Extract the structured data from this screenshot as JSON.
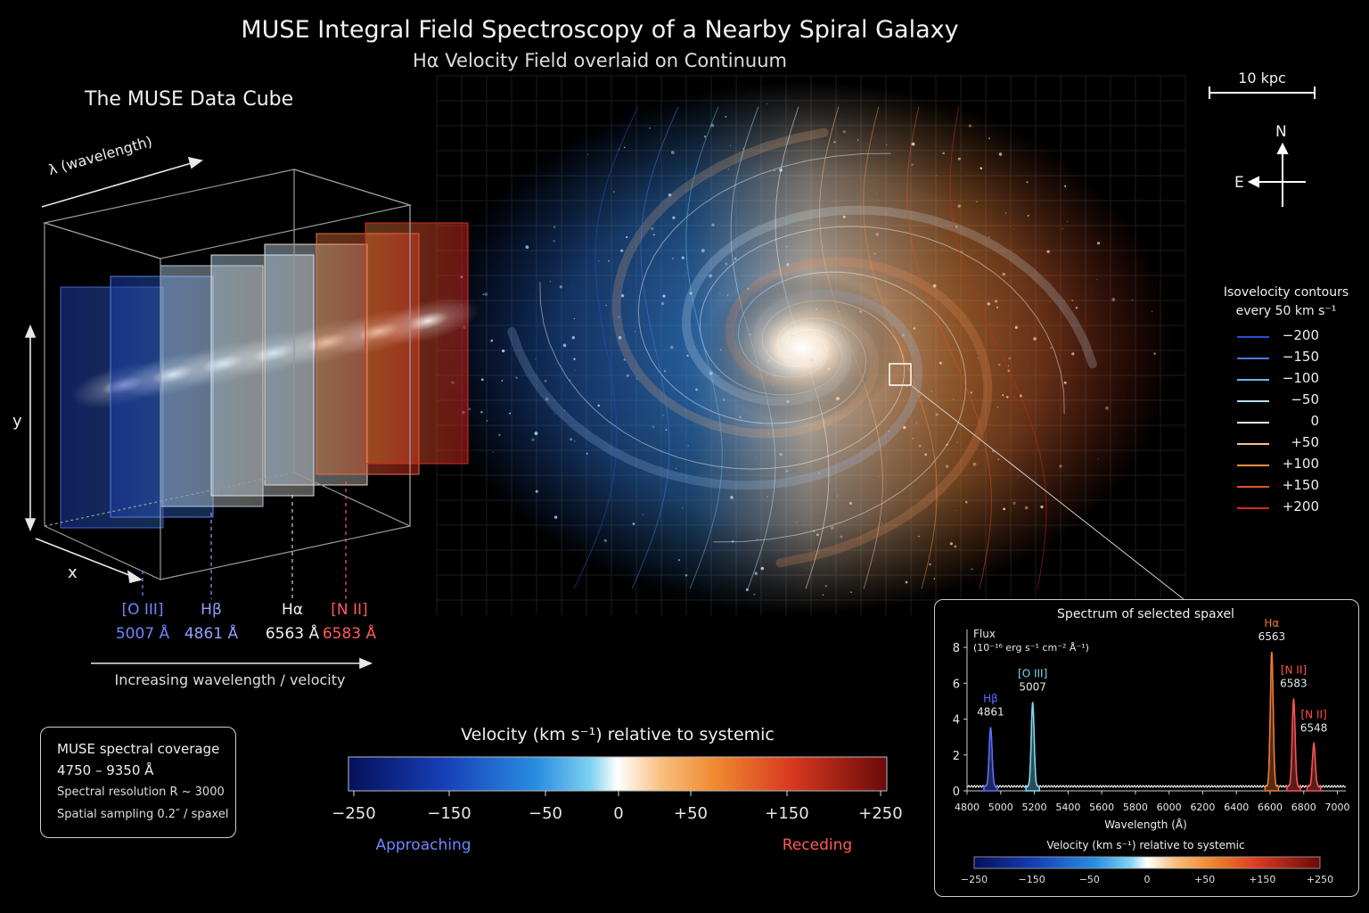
{
  "title": "MUSE Integral Field Spectroscopy of a Nearby Spiral Galaxy",
  "subtitle": "Hα Velocity Field overlaid on Continuum",
  "cube": {
    "title": "The MUSE Data Cube",
    "axis_lambda": "λ (wavelength)",
    "axis_y": "y",
    "axis_x": "x",
    "lines": [
      {
        "name": "[O III]",
        "wavelength": "5007 Å",
        "color": "#6f86ff"
      },
      {
        "name": "Hβ",
        "wavelength": "4861 Å",
        "color": "#8fa2ff"
      },
      {
        "name": "Hα",
        "wavelength": "6563 Å",
        "color": "#f2f2f2"
      },
      {
        "name": "[N II]",
        "wavelength": "6583 Å",
        "color": "#ff5a5a"
      }
    ],
    "increasing_label": "Increasing wavelength / velocity"
  },
  "coverage": {
    "line1": "MUSE spectral coverage",
    "line2": "4750 – 9350 Å",
    "line3": "Spectral resolution R ~ 3000",
    "line4": "Spatial sampling 0.2″ / spaxel"
  },
  "scale_bar": {
    "label": "10 kpc"
  },
  "compass": {
    "north": "N",
    "east": "E"
  },
  "contour_legend": {
    "title_line1": "Isovelocity contours",
    "title_line2": "every 50 km s⁻¹",
    "items": [
      {
        "label": "−200",
        "color": "#2a4fd6"
      },
      {
        "label": "−150",
        "color": "#4a78e8"
      },
      {
        "label": "−100",
        "color": "#6ab8e8"
      },
      {
        "label": "−50",
        "color": "#b8dcf0"
      },
      {
        "label": "0",
        "color": "#f4f4f4"
      },
      {
        "label": "+50",
        "color": "#f2c08a"
      },
      {
        "label": "+100",
        "color": "#f09040"
      },
      {
        "label": "+150",
        "color": "#e8502a"
      },
      {
        "label": "+200",
        "color": "#d42a20"
      }
    ]
  },
  "colorbar": {
    "title": "Velocity (km s⁻¹) relative to systemic",
    "ticks": [
      "−250",
      "−150",
      "−50",
      "0",
      "+50",
      "+150",
      "+250"
    ],
    "approaching": "Approaching",
    "receding": "Receding",
    "approaching_color": "#6f86ff",
    "receding_color": "#ff5a5a"
  },
  "spectrum_panel": {
    "title": "Spectrum of selected spaxel",
    "flux_label": "Flux",
    "flux_units": "(10⁻¹⁶ erg s⁻¹ cm⁻² Å⁻¹)",
    "xlabel": "Wavelength (Å)",
    "colorbar_title": "Velocity (km s⁻¹) relative to systemic",
    "colorbar_ticks": [
      "−250",
      "−150",
      "−50",
      "0",
      "+50",
      "+150",
      "+250"
    ]
  },
  "chart_data": {
    "type": "line",
    "title": "Spectrum of selected spaxel",
    "xlabel": "Wavelength (Å)",
    "ylabel": "Flux (10⁻¹⁶ erg s⁻¹ cm⁻² Å⁻¹)",
    "xlim": [
      4800,
      7050
    ],
    "ylim": [
      0,
      8.5
    ],
    "xticks": [
      4800,
      5000,
      5200,
      5400,
      5600,
      5800,
      6000,
      6200,
      6400,
      6600,
      6800,
      7000
    ],
    "yticks": [
      0,
      2,
      4,
      6,
      8
    ],
    "continuum": 0.25,
    "peaks": [
      {
        "label": "Hβ",
        "value_label": "4861",
        "x": 4861,
        "flux": 3.3,
        "color": "#5a6cff"
      },
      {
        "label": "[O III]",
        "value_label": "5007",
        "x": 5007,
        "flux": 4.7,
        "color": "#7fd8f0"
      },
      {
        "label": "Hα",
        "value_label": "6563",
        "x": 6563,
        "flux": 7.5,
        "color": "#f07a30"
      },
      {
        "label": "[N II]",
        "value_label": "6583",
        "x": 6583,
        "flux": 4.9,
        "color": "#ff5050"
      },
      {
        "label": "[N II]",
        "value_label": "6548",
        "x": 6548,
        "flux": 2.4,
        "color": "#ff5050"
      }
    ]
  }
}
